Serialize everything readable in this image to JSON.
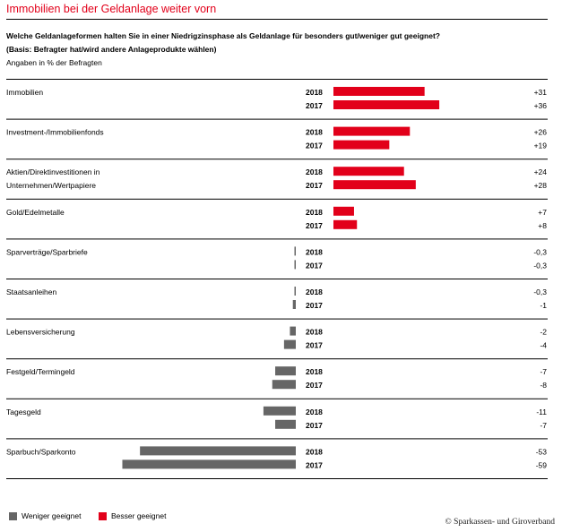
{
  "title": "Immobilien bei der Geldanlage weiter vorn",
  "question": "Welche Geldanlageformen halten Sie in einer Niedrigzinsphase als Geldanlage für besonders gut/weniger gut geeignet?",
  "basis": "(Basis: Befragter hat/wird andere Anlageprodukte wählen)",
  "unit_note": "Angaben in % der Befragten",
  "copyright": "© Sparkassen- und Giroverband",
  "colors": {
    "positive": "#e2001a",
    "negative": "#666666"
  },
  "chart_data": {
    "type": "bar",
    "orientation": "horizontal",
    "categories": [
      {
        "label": [
          "Immobilien"
        ],
        "values": [
          {
            "year": "2018",
            "value": 31,
            "label": "+31"
          },
          {
            "year": "2017",
            "value": 36,
            "label": "+36"
          }
        ]
      },
      {
        "label": [
          "Investment-/Immobilienfonds"
        ],
        "values": [
          {
            "year": "2018",
            "value": 26,
            "label": "+26"
          },
          {
            "year": "2017",
            "value": 19,
            "label": "+19"
          }
        ]
      },
      {
        "label": [
          "Aktien/Direktinvestitionen in",
          "Unternehmen/Wertpapiere"
        ],
        "values": [
          {
            "year": "2018",
            "value": 24,
            "label": "+24"
          },
          {
            "year": "2017",
            "value": 28,
            "label": "+28"
          }
        ]
      },
      {
        "label": [
          "Gold/Edelmetalle"
        ],
        "values": [
          {
            "year": "2018",
            "value": 7,
            "label": "+7"
          },
          {
            "year": "2017",
            "value": 8,
            "label": "+8"
          }
        ]
      },
      {
        "label": [
          "Sparverträge/Sparbriefe"
        ],
        "values": [
          {
            "year": "2018",
            "value": -0.3,
            "label": "-0,3"
          },
          {
            "year": "2017",
            "value": -0.3,
            "label": "-0,3"
          }
        ]
      },
      {
        "label": [
          "Staatsanleihen"
        ],
        "values": [
          {
            "year": "2018",
            "value": -0.3,
            "label": "-0,3"
          },
          {
            "year": "2017",
            "value": -1,
            "label": "-1"
          }
        ]
      },
      {
        "label": [
          "Lebensversicherung"
        ],
        "values": [
          {
            "year": "2018",
            "value": -2,
            "label": "-2"
          },
          {
            "year": "2017",
            "value": -4,
            "label": "-4"
          }
        ]
      },
      {
        "label": [
          "Festgeld/Termingeld"
        ],
        "values": [
          {
            "year": "2018",
            "value": -7,
            "label": "-7"
          },
          {
            "year": "2017",
            "value": -8,
            "label": "-8"
          }
        ]
      },
      {
        "label": [
          "Tagesgeld"
        ],
        "values": [
          {
            "year": "2018",
            "value": -11,
            "label": "-11"
          },
          {
            "year": "2017",
            "value": -7,
            "label": "-7"
          }
        ]
      },
      {
        "label": [
          "Sparbuch/Sparkonto"
        ],
        "values": [
          {
            "year": "2018",
            "value": -53,
            "label": "-53"
          },
          {
            "year": "2017",
            "value": -59,
            "label": "-59"
          }
        ]
      }
    ],
    "legend": [
      {
        "name": "Weniger geeignet",
        "color": "#666666"
      },
      {
        "name": "Besser geeignet",
        "color": "#e2001a"
      }
    ],
    "legend_placement": "bottom-left"
  }
}
